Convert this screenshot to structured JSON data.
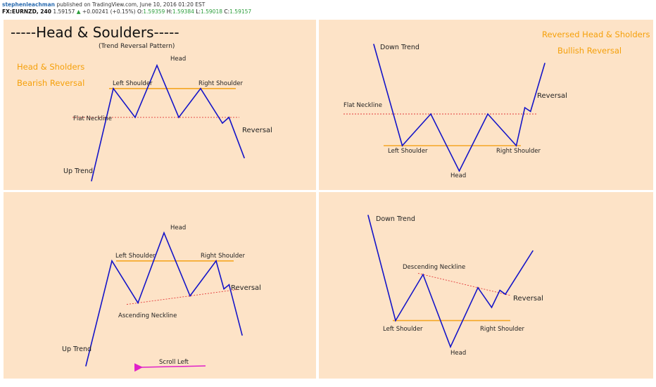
{
  "header": {
    "author": "stephenleachman",
    "published_text": "published on TradingView.com, June 10, 2016 01:20 EST",
    "symbol": "FX:EURNZD, 240",
    "last": "1.59157",
    "arrow": "▲",
    "change": "+0.00241 (+0.15%)",
    "o_label": "O:",
    "o": "1.59359",
    "h_label": "H:",
    "h": "1.59384",
    "l_label": "L:",
    "l": "1.59018",
    "c_label": "C:",
    "c": "1.59157"
  },
  "colors": {
    "panel": "#fde3c7",
    "line": "#1414c8",
    "neckline": "#e33b3b",
    "shoulder": "#f5a623",
    "orange_text": "#f5a00a",
    "arrow": "#e020c8"
  },
  "chart_data": [
    {
      "type": "line",
      "title": "-----Head & Soulders-----",
      "subtitle": "(Trend Reversal Pattern)",
      "side_text": [
        "Head & Sholders",
        "Bearish Reversal"
      ],
      "labels": {
        "start": "Up Trend",
        "left_shoulder": "Left Shoulder",
        "head": "Head",
        "right_shoulder": "Right Shoulder",
        "neckline": "Flat Neckline",
        "reversal": "Reversal"
      },
      "pattern": "head-and-shoulders",
      "neckline_type": "flat",
      "points": [
        {
          "x": 0,
          "y": 0
        },
        {
          "x": 1,
          "y": 8
        },
        {
          "x": 2,
          "y": 5.5
        },
        {
          "x": 3,
          "y": 10
        },
        {
          "x": 4,
          "y": 5.5
        },
        {
          "x": 5,
          "y": 8
        },
        {
          "x": 6,
          "y": 5
        },
        {
          "x": 6.3,
          "y": 5.5
        },
        {
          "x": 7,
          "y": 2
        }
      ]
    },
    {
      "type": "line",
      "title": "",
      "side_text": [
        "Reversed Head & Sholders",
        "Bullish Reversal"
      ],
      "labels": {
        "start": "Down Trend",
        "left_shoulder": "Left Shoulder",
        "head": "Head",
        "right_shoulder": "Right Shoulder",
        "neckline": "Flat Neckline",
        "reversal": "Reversal"
      },
      "pattern": "inverse-head-and-shoulders",
      "neckline_type": "flat",
      "points": [
        {
          "x": 0,
          "y": 10
        },
        {
          "x": 1,
          "y": 2
        },
        {
          "x": 2,
          "y": 4.5
        },
        {
          "x": 3,
          "y": 0
        },
        {
          "x": 4,
          "y": 4.5
        },
        {
          "x": 5,
          "y": 2
        },
        {
          "x": 5.3,
          "y": 5
        },
        {
          "x": 5.5,
          "y": 4.7
        },
        {
          "x": 6,
          "y": 8.5
        }
      ]
    },
    {
      "type": "line",
      "title": "",
      "labels": {
        "start": "Up Trend",
        "left_shoulder": "Left Shoulder",
        "head": "Head",
        "right_shoulder": "Right Shoulder",
        "neckline": "Ascending Neckline",
        "reversal": "Reversal",
        "scroll": "Scroll Left"
      },
      "pattern": "head-and-shoulders",
      "neckline_type": "ascending",
      "points": [
        {
          "x": 0,
          "y": 0
        },
        {
          "x": 1,
          "y": 7.5
        },
        {
          "x": 2,
          "y": 4.5
        },
        {
          "x": 3,
          "y": 9.5
        },
        {
          "x": 4,
          "y": 5
        },
        {
          "x": 5,
          "y": 7.5
        },
        {
          "x": 5.3,
          "y": 5.5
        },
        {
          "x": 5.5,
          "y": 5.8
        },
        {
          "x": 6,
          "y": 2.2
        }
      ]
    },
    {
      "type": "line",
      "title": "",
      "labels": {
        "start": "Down Trend",
        "left_shoulder": "Left Shoulder",
        "head": "Head",
        "right_shoulder": "Right Shoulder",
        "neckline": "Descending Neckline",
        "reversal": "Reversal"
      },
      "pattern": "inverse-head-and-shoulders",
      "neckline_type": "descending",
      "points": [
        {
          "x": 0,
          "y": 10
        },
        {
          "x": 1,
          "y": 2
        },
        {
          "x": 2,
          "y": 5.5
        },
        {
          "x": 3,
          "y": 0
        },
        {
          "x": 4,
          "y": 4.5
        },
        {
          "x": 4.5,
          "y": 3
        },
        {
          "x": 4.8,
          "y": 4.3
        },
        {
          "x": 5,
          "y": 4
        },
        {
          "x": 6,
          "y": 7.3
        }
      ]
    }
  ]
}
